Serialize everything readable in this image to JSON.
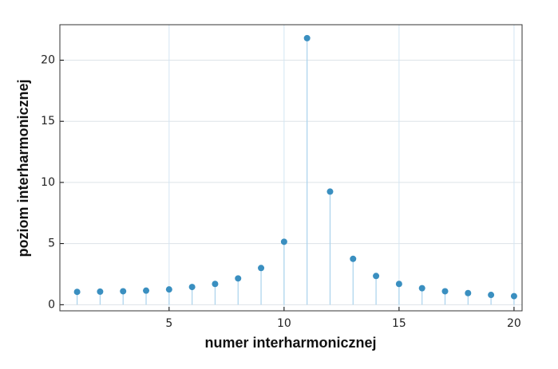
{
  "chart_data": {
    "type": "stem",
    "xlabel": "numer interharmonicznej",
    "ylabel": "poziom interharmonicznej",
    "x": [
      1,
      2,
      3,
      4,
      5,
      6,
      7,
      8,
      9,
      10,
      11,
      12,
      13,
      14,
      15,
      16,
      17,
      18,
      19,
      20
    ],
    "values": [
      1.05,
      1.07,
      1.1,
      1.15,
      1.25,
      1.45,
      1.7,
      2.15,
      3.0,
      5.15,
      21.8,
      9.25,
      3.75,
      2.35,
      1.7,
      1.35,
      1.1,
      0.95,
      0.8,
      0.7
    ],
    "color": "#3a8fc0",
    "stem_color": "#a9d2ec",
    "xlim": [
      0.25,
      20.35
    ],
    "ylim": [
      -0.5,
      22.9
    ],
    "xticks": [
      5,
      10,
      15,
      20
    ],
    "yticks": [
      0,
      5,
      10,
      15,
      20
    ],
    "grid": true
  }
}
